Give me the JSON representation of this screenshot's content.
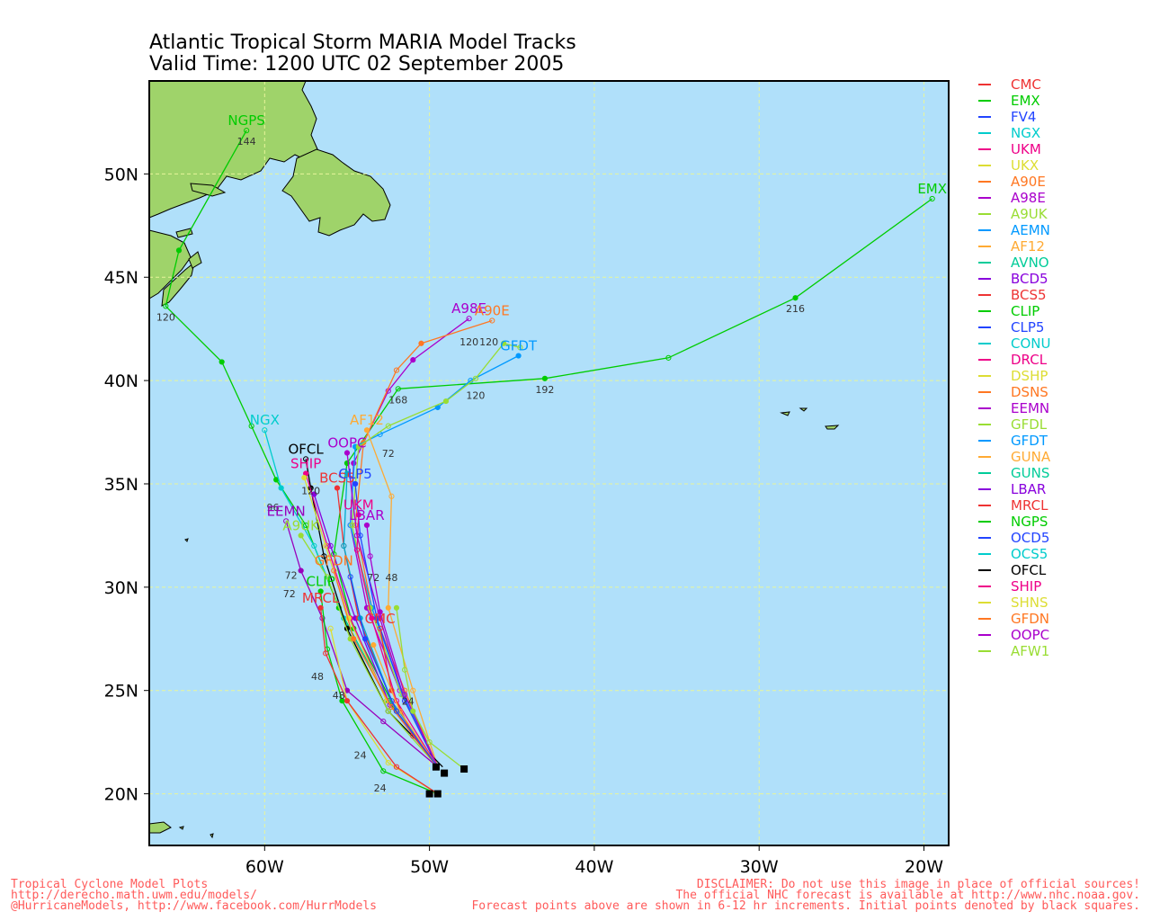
{
  "title": {
    "line1": "Atlantic Tropical Storm MARIA Model Tracks",
    "line2": "Valid Time: 1200 UTC 02 September 2005"
  },
  "map": {
    "lon_range": [
      -67,
      -18.5
    ],
    "lat_range": [
      17.5,
      54.5
    ],
    "lat_ticks": [
      {
        "v": 20,
        "label": "20N"
      },
      {
        "v": 25,
        "label": "25N"
      },
      {
        "v": 30,
        "label": "30N"
      },
      {
        "v": 35,
        "label": "35N"
      },
      {
        "v": 40,
        "label": "40N"
      },
      {
        "v": 45,
        "label": "45N"
      },
      {
        "v": 50,
        "label": "50N"
      }
    ],
    "lon_ticks": [
      {
        "v": -60,
        "label": "60W"
      },
      {
        "v": -50,
        "label": "50W"
      },
      {
        "v": -40,
        "label": "40W"
      },
      {
        "v": -30,
        "label": "30W"
      },
      {
        "v": -20,
        "label": "20W"
      }
    ],
    "ocean_color": "#b0e0fa",
    "land_color": "#9fd36a",
    "grid_color": "#e8f59a"
  },
  "tracks": [
    {
      "model": "EMX",
      "color": "#00cc00",
      "label": "EMX",
      "points": [
        [
          -49.5,
          21.3
        ],
        [
          -52.0,
          24.0
        ],
        [
          -54.6,
          28.0
        ],
        [
          -55.8,
          31.6
        ],
        [
          -55.0,
          36.0
        ],
        [
          -51.9,
          39.6
        ],
        [
          -43.0,
          40.1
        ],
        [
          -35.5,
          41.1
        ],
        [
          -27.8,
          44.0
        ],
        [
          -19.5,
          48.8
        ]
      ],
      "pt_labels": [
        [
          "168",
          -51.9,
          39.6
        ],
        [
          "192",
          -43.0,
          40.1
        ],
        [
          "216",
          -27.8,
          44.0
        ]
      ]
    },
    {
      "model": "NGPS",
      "color": "#00cc00",
      "label": "NGPS",
      "points": [
        [
          -49.5,
          21.3
        ],
        [
          -52.5,
          24.5
        ],
        [
          -55.5,
          29.0
        ],
        [
          -57.5,
          33.0
        ],
        [
          -59.3,
          35.2
        ],
        [
          -60.8,
          37.8
        ],
        [
          -62.6,
          40.9
        ],
        [
          -66.0,
          43.6
        ],
        [
          -65.2,
          46.3
        ],
        [
          -61.1,
          52.1
        ]
      ],
      "pt_labels": [
        [
          "120",
          -66.0,
          43.6
        ],
        [
          "144",
          -61.1,
          52.1
        ]
      ]
    },
    {
      "model": "NGX",
      "color": "#00cccc",
      "label": "NGX",
      "points": [
        [
          -49.5,
          21.3
        ],
        [
          -52.3,
          24.2
        ],
        [
          -55.2,
          28.5
        ],
        [
          -57.0,
          32.0
        ],
        [
          -59.0,
          34.8
        ],
        [
          -60.0,
          37.6
        ]
      ],
      "pt_labels": [
        [
          "96",
          -59.5,
          34.4
        ]
      ]
    },
    {
      "model": "A98E",
      "color": "#aa00cc",
      "label": "A98E",
      "points": [
        [
          -49.5,
          21.3
        ],
        [
          -51.8,
          25.0
        ],
        [
          -53.8,
          29.0
        ],
        [
          -54.8,
          33.0
        ],
        [
          -54.6,
          36.0
        ],
        [
          -52.5,
          39.5
        ],
        [
          -51.0,
          41.0
        ],
        [
          -47.6,
          43.0
        ]
      ],
      "pt_labels": [
        [
          "120",
          -47.6,
          42.4
        ]
      ]
    },
    {
      "model": "A90E",
      "color": "#ff7722",
      "label": "A90E",
      "points": [
        [
          -49.5,
          21.3
        ],
        [
          -51.5,
          25.0
        ],
        [
          -53.5,
          29.0
        ],
        [
          -54.5,
          33.0
        ],
        [
          -54.0,
          37.0
        ],
        [
          -52.0,
          40.5
        ],
        [
          -50.5,
          41.8
        ],
        [
          -46.2,
          42.9
        ]
      ],
      "pt_labels": [
        [
          "120",
          -46.4,
          42.4
        ]
      ]
    },
    {
      "model": "GFDT",
      "color": "#0099ff",
      "label": "GFDT",
      "points": [
        [
          -49.5,
          21.3
        ],
        [
          -51.6,
          24.8
        ],
        [
          -53.5,
          29.0
        ],
        [
          -54.8,
          33.0
        ],
        [
          -54.5,
          36.8
        ],
        [
          -53.0,
          37.4
        ],
        [
          -49.5,
          38.7
        ],
        [
          -47.5,
          40.0
        ],
        [
          -44.6,
          41.2
        ]
      ],
      "pt_labels": [
        [
          "72",
          -52.5,
          37.0
        ],
        [
          "120",
          -47.2,
          39.8
        ]
      ]
    },
    {
      "model": "GFDL",
      "color": "#99dd33",
      "label": "",
      "points": [
        [
          -49.5,
          21.3
        ],
        [
          -51.7,
          24.8
        ],
        [
          -53.6,
          29.0
        ],
        [
          -54.7,
          33.0
        ],
        [
          -54.3,
          36.8
        ],
        [
          -52.5,
          37.8
        ],
        [
          -49.0,
          39.0
        ],
        [
          -47.2,
          40.1
        ],
        [
          -45.5,
          41.8
        ],
        [
          -44.5,
          41.6
        ]
      ],
      "pt_labels": []
    },
    {
      "model": "AF12",
      "color": "#ffaa33",
      "label": "AF12",
      "points": [
        [
          -49.5,
          21.3
        ],
        [
          -51.0,
          25.0
        ],
        [
          -52.5,
          29.0
        ],
        [
          -52.3,
          34.4
        ],
        [
          -53.8,
          37.6
        ]
      ],
      "pt_labels": [
        [
          "48",
          -52.3,
          31.0
        ]
      ]
    },
    {
      "model": "OOPC",
      "color": "#aa00cc",
      "label": "OOPC",
      "points": [
        [
          -49.5,
          21.3
        ],
        [
          -51.5,
          24.5
        ],
        [
          -53.0,
          28.5
        ],
        [
          -54.4,
          32.5
        ],
        [
          -55.0,
          36.5
        ]
      ],
      "pt_labels": []
    },
    {
      "model": "OFCL",
      "color": "#000000",
      "label": "OFCL",
      "points": [
        [
          -49.2,
          21.3
        ],
        [
          -52.5,
          24.0
        ],
        [
          -55.0,
          28.0
        ],
        [
          -56.4,
          31.5
        ],
        [
          -57.2,
          34.8
        ],
        [
          -57.5,
          36.2
        ]
      ],
      "pt_labels": [
        [
          "120",
          -57.2,
          35.2
        ]
      ]
    },
    {
      "model": "SHIP",
      "color": "#ee0088",
      "label": "SHIP",
      "points": [
        [
          -49.5,
          21.3
        ],
        [
          -52.6,
          24.5
        ],
        [
          -54.8,
          28.5
        ],
        [
          -56.2,
          32.0
        ],
        [
          -57.5,
          35.5
        ]
      ],
      "pt_labels": []
    },
    {
      "model": "SHNS",
      "color": "#dddd33",
      "label": "",
      "points": [
        [
          -49.5,
          21.3
        ],
        [
          -52.6,
          24.5
        ],
        [
          -54.9,
          28.5
        ],
        [
          -56.3,
          32.0
        ],
        [
          -57.6,
          35.3
        ]
      ],
      "pt_labels": []
    },
    {
      "model": "BCD5",
      "color": "#8800dd",
      "label": "",
      "points": [
        [
          -49.5,
          21.3
        ],
        [
          -52.4,
          24.3
        ],
        [
          -54.5,
          28.5
        ],
        [
          -56.0,
          32.0
        ],
        [
          -57.0,
          34.5
        ]
      ],
      "pt_labels": []
    },
    {
      "model": "BCS5",
      "color": "#ee3333",
      "label": "BCS5",
      "points": [
        [
          -49.5,
          21.3
        ],
        [
          -52.3,
          24.5
        ],
        [
          -54.3,
          28.5
        ],
        [
          -55.2,
          32.0
        ],
        [
          -55.6,
          34.8
        ]
      ],
      "pt_labels": []
    },
    {
      "model": "CLP5",
      "color": "#2244ff",
      "label": "CLP5",
      "points": [
        [
          -49.5,
          21.3
        ],
        [
          -51.5,
          24.5
        ],
        [
          -53.2,
          28.5
        ],
        [
          -54.2,
          32.5
        ],
        [
          -54.5,
          35.0
        ]
      ],
      "pt_labels": []
    },
    {
      "model": "CONU",
      "color": "#00aacc",
      "label": "",
      "points": [
        [
          -49.5,
          21.3
        ],
        [
          -52.3,
          24.5
        ],
        [
          -54.2,
          28.5
        ],
        [
          -55.2,
          32.0
        ],
        [
          -55.0,
          35.5
        ]
      ],
      "pt_labels": []
    },
    {
      "model": "UKM",
      "color": "#ee0088",
      "label": "UKM",
      "points": [
        [
          -49.5,
          21.3
        ],
        [
          -52.0,
          24.5
        ],
        [
          -53.5,
          28.5
        ],
        [
          -54.4,
          31.8
        ],
        [
          -54.3,
          33.5
        ]
      ],
      "pt_labels": []
    },
    {
      "model": "LBAR",
      "color": "#aa00cc",
      "label": "LBAR",
      "points": [
        [
          -49.5,
          21.3
        ],
        [
          -51.5,
          24.8
        ],
        [
          -53.0,
          28.8
        ],
        [
          -53.6,
          31.5
        ],
        [
          -53.8,
          33.0
        ]
      ],
      "pt_labels": [
        [
          "72",
          -53.4,
          31.0
        ]
      ]
    },
    {
      "model": "EEMN",
      "color": "#9900bb",
      "label": "EEMN",
      "points": [
        [
          -49.5,
          21.3
        ],
        [
          -52.8,
          23.5
        ],
        [
          -55.0,
          25.0
        ],
        [
          -56.5,
          28.5
        ],
        [
          -57.8,
          30.8
        ],
        [
          -58.7,
          33.2
        ]
      ],
      "pt_labels": [
        [
          "72",
          -58.4,
          31.1
        ]
      ]
    },
    {
      "model": "A9UK",
      "color": "#99dd33",
      "label": "A9UK",
      "points": [
        [
          -49.5,
          21.3
        ],
        [
          -52.5,
          24.0
        ],
        [
          -54.8,
          27.5
        ],
        [
          -56.2,
          30.5
        ],
        [
          -57.8,
          32.5
        ]
      ],
      "pt_labels": [
        [
          "72",
          -58.5,
          30.2
        ]
      ]
    },
    {
      "model": "GFDN",
      "color": "#ff7722",
      "label": "GFDN",
      "points": [
        [
          -49.5,
          21.3
        ],
        [
          -52.3,
          24.2
        ],
        [
          -54.6,
          27.5
        ],
        [
          -55.8,
          30.8
        ]
      ],
      "pt_labels": []
    },
    {
      "model": "CLIP",
      "color": "#00cc00",
      "label": "CLIP",
      "points": [
        [
          -49.5,
          20.0
        ],
        [
          -52.8,
          21.1
        ],
        [
          -55.3,
          24.5
        ],
        [
          -56.2,
          27.0
        ],
        [
          -56.6,
          29.8
        ]
      ],
      "pt_labels": [
        [
          "24",
          -53.0,
          20.8
        ],
        [
          "48",
          -55.5,
          25.3
        ]
      ]
    },
    {
      "model": "DSHP",
      "color": "#dddd33",
      "label": "",
      "points": [
        [
          -49.5,
          20.0
        ],
        [
          -52.5,
          21.5
        ],
        [
          -55.0,
          24.5
        ],
        [
          -56.0,
          28.0
        ]
      ],
      "pt_labels": [
        [
          "24",
          -54.2,
          22.4
        ]
      ]
    },
    {
      "model": "MRCL",
      "color": "#ee3333",
      "label": "MRCL",
      "points": [
        [
          -49.5,
          20.0
        ],
        [
          -52.0,
          21.3
        ],
        [
          -55.0,
          24.5
        ],
        [
          -56.3,
          26.8
        ],
        [
          -56.6,
          29.0
        ]
      ],
      "pt_labels": [
        [
          "48",
          -56.8,
          26.2
        ]
      ]
    },
    {
      "model": "AFW1",
      "color": "#99dd33",
      "label": "",
      "points": [
        [
          -47.9,
          21.2
        ],
        [
          -50.0,
          22.5
        ],
        [
          -51.0,
          24.0
        ],
        [
          -51.5,
          26.0
        ],
        [
          -52.0,
          29.0
        ]
      ],
      "pt_labels": [
        [
          "24",
          -51.3,
          25.0
        ]
      ]
    },
    {
      "model": "CMC",
      "color": "#ee3333",
      "label": "CMC",
      "points": [
        [
          -49.5,
          21.3
        ],
        [
          -51.0,
          22.8
        ],
        [
          -52.3,
          25.0
        ],
        [
          -53.0,
          28.0
        ]
      ],
      "pt_labels": []
    },
    {
      "model": "GUNA",
      "color": "#ffaa33",
      "label": "",
      "points": [
        [
          -49.5,
          21.3
        ],
        [
          -51.8,
          24.0
        ],
        [
          -53.4,
          27.2
        ]
      ],
      "pt_labels": []
    },
    {
      "model": "OCD5",
      "color": "#2244ff",
      "label": "",
      "points": [
        [
          -49.5,
          21.3
        ],
        [
          -52.0,
          24.0
        ],
        [
          -53.9,
          27.5
        ],
        [
          -54.8,
          30.5
        ]
      ],
      "pt_labels": []
    }
  ],
  "init_points": [
    [
      -49.6,
      21.3
    ],
    [
      -49.1,
      21.0
    ],
    [
      -47.9,
      21.2
    ],
    [
      -49.5,
      20.0
    ],
    [
      -50.0,
      20.0
    ]
  ],
  "land_labels": [
    {
      "text": "NGPS",
      "lon": -61.7,
      "lat": 52.8,
      "color": "#00cc00"
    },
    {
      "text": "EMX",
      "lon": -19.5,
      "lat": 49.3,
      "color": "#00cc00"
    }
  ],
  "legend": [
    {
      "name": "CMC",
      "color": "#ee3333"
    },
    {
      "name": "EMX",
      "color": "#00cc00"
    },
    {
      "name": "FV4",
      "color": "#2244ff"
    },
    {
      "name": "NGX",
      "color": "#00cccc"
    },
    {
      "name": "UKM",
      "color": "#ee0088"
    },
    {
      "name": "UKX",
      "color": "#dddd33"
    },
    {
      "name": "A90E",
      "color": "#ff7722"
    },
    {
      "name": "A98E",
      "color": "#aa00cc"
    },
    {
      "name": "A9UK",
      "color": "#99dd33"
    },
    {
      "name": "AEMN",
      "color": "#0099ff"
    },
    {
      "name": "AF12",
      "color": "#ffaa33"
    },
    {
      "name": "AVNO",
      "color": "#00cc99"
    },
    {
      "name": "BCD5",
      "color": "#8800dd"
    },
    {
      "name": "BCS5",
      "color": "#ee3333"
    },
    {
      "name": "CLIP",
      "color": "#00cc00"
    },
    {
      "name": "CLP5",
      "color": "#2244ff"
    },
    {
      "name": "CONU",
      "color": "#00cccc"
    },
    {
      "name": "DRCL",
      "color": "#ee0088"
    },
    {
      "name": "DSHP",
      "color": "#dddd33"
    },
    {
      "name": "DSNS",
      "color": "#ff7722"
    },
    {
      "name": "EEMN",
      "color": "#aa00cc"
    },
    {
      "name": "GFDL",
      "color": "#99dd33"
    },
    {
      "name": "GFDT",
      "color": "#0099ff"
    },
    {
      "name": "GUNA",
      "color": "#ffaa33"
    },
    {
      "name": "GUNS",
      "color": "#00cc99"
    },
    {
      "name": "LBAR",
      "color": "#8800dd"
    },
    {
      "name": "MRCL",
      "color": "#ee3333"
    },
    {
      "name": "NGPS",
      "color": "#00cc00"
    },
    {
      "name": "OCD5",
      "color": "#2244ff"
    },
    {
      "name": "OCS5",
      "color": "#00cccc"
    },
    {
      "name": "OFCL",
      "color": "#000000"
    },
    {
      "name": "SHIP",
      "color": "#ee0088"
    },
    {
      "name": "SHNS",
      "color": "#dddd33"
    },
    {
      "name": "GFDN",
      "color": "#ff7722"
    },
    {
      "name": "OOPC",
      "color": "#aa00cc"
    },
    {
      "name": "AFW1",
      "color": "#99dd33"
    }
  ],
  "footer": {
    "left1": "Tropical Cyclone Model Plots",
    "left2": "http://derecho.math.uwm.edu/models/",
    "left3": "@HurricaneModels, http://www.facebook.com/HurrModels",
    "right1": "DISCLAIMER: Do not use this image in place of official sources!",
    "right2": "The official NHC forecast is available at http://www.nhc.noaa.gov.",
    "right3": "Forecast points above are shown in 6-12 hr increments. Initial points denoted by black squares."
  }
}
